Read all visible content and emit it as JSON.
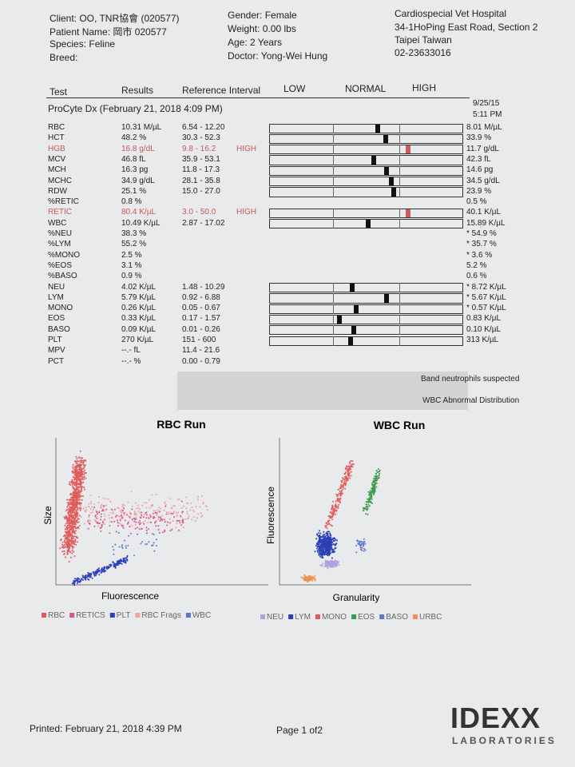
{
  "header": {
    "client": "Client: OO, TNR協會 (020577)",
    "patient": "Patient Name: 岡市 020577",
    "species": "Species: Feline",
    "breed": "Breed:",
    "gender": "Gender: Female",
    "weight": "Weight: 0.00 lbs",
    "age": "Age: 2 Years",
    "doctor": "Doctor: Yong-Wei Hung",
    "hospital": [
      "Cardiospecial Vet Hospital",
      "34-1HoPing East Road, Section 2",
      "Taipei Taiwan",
      "02-23633016"
    ]
  },
  "table": {
    "columns": [
      "Test",
      "Results",
      "Reference Interval",
      "LOW",
      "NORMAL",
      "HIGH"
    ],
    "section": "ProCyte Dx (February 21, 2018 4:09 PM)",
    "prior_date": "9/25/15",
    "prior_time": "5:11 PM",
    "rows": [
      {
        "test": "RBC",
        "result": "10.31 M/µL",
        "range": "6.54 - 12.20",
        "prior": "8.01 M/µL"
      },
      {
        "test": "HCT",
        "result": "48.2 %",
        "range": "30.3 - 52.3",
        "prior": "33.9 %"
      },
      {
        "test": "HGB",
        "result": "16.8 g/dL",
        "range": "9.8 - 16.2",
        "flag": "HIGH",
        "prior": "11.7 g/dL"
      },
      {
        "test": "MCV",
        "result": "46.8 fL",
        "range": "35.9 - 53.1",
        "prior": "42.3 fL"
      },
      {
        "test": "MCH",
        "result": "16.3 pg",
        "range": "11.8 - 17.3",
        "prior": "14.6 pg"
      },
      {
        "test": "MCHC",
        "result": "34.9 g/dL",
        "range": "28.1 - 35.8",
        "prior": "34.5 g/dL"
      },
      {
        "test": "RDW",
        "result": "25.1 %",
        "range": "15.0 - 27.0",
        "prior": "23.9 %"
      },
      {
        "test": "%RETIC",
        "result": "0.8 %",
        "prior": "0.5 %"
      },
      {
        "test": "RETIC",
        "result": "80.4 K/µL",
        "range": "3.0 - 50.0",
        "flag": "HIGH",
        "prior": "40.1 K/µL"
      },
      {
        "test": "WBC",
        "result": "10.49 K/µL",
        "range": "2.87 - 17.02",
        "prior": "15.89 K/µL"
      },
      {
        "test": "%NEU",
        "result": "38.3 %",
        "prior": "* 54.9 %"
      },
      {
        "test": "%LYM",
        "result": "55.2 %",
        "prior": "* 35.7 %"
      },
      {
        "test": "%MONO",
        "result": "2.5 %",
        "prior": "* 3.6 %"
      },
      {
        "test": "%EOS",
        "result": "3.1 %",
        "prior": "5.2 %"
      },
      {
        "test": "%BASO",
        "result": "0.9 %",
        "prior": "0.6 %"
      },
      {
        "test": "NEU",
        "result": "4.02 K/µL",
        "range": "1.48 - 10.29",
        "prior": "* 8.72 K/µL"
      },
      {
        "test": "LYM",
        "result": "5.79 K/µL",
        "range": "0.92 - 6.88",
        "prior": "* 5.67 K/µL"
      },
      {
        "test": "MONO",
        "result": "0.26 K/µL",
        "range": "0.05 - 0.67",
        "prior": "* 0.57 K/µL"
      },
      {
        "test": "EOS",
        "result": "0.33 K/µL",
        "range": "0.17 - 1.57",
        "prior": "0.83 K/µL"
      },
      {
        "test": "BASO",
        "result": "0.09 K/µL",
        "range": "0.01 - 0.26",
        "prior": "0.10 K/µL"
      },
      {
        "test": "PLT",
        "result": "270 K/µL",
        "range": "151 - 600",
        "prior": "313 K/µL"
      },
      {
        "test": "MPV",
        "result": "--.- fL",
        "range": "11.4 - 21.6"
      },
      {
        "test": "PCT",
        "result": "--.- %",
        "range": "0.00 - 0.79"
      }
    ]
  },
  "notes": [
    "Band neutrophils suspected",
    "WBC Abnormal Distribution"
  ],
  "rbc_run": {
    "title": "RBC Run",
    "x_label": "Fluorescence",
    "y_label": "Size",
    "legend": [
      {
        "name": "RBC",
        "color": "#e05a5a"
      },
      {
        "name": "RETICS",
        "color": "#d9538f"
      },
      {
        "name": "PLT",
        "color": "#2b3fb8"
      },
      {
        "name": "RBC Frags",
        "color": "#f0a0a0"
      },
      {
        "name": "WBC",
        "color": "#5a78d0"
      }
    ]
  },
  "wbc_run": {
    "title": "WBC Run",
    "x_label": "Granularity",
    "y_label": "Fluorescence",
    "legend": [
      {
        "name": "NEU",
        "color": "#b0a0e0"
      },
      {
        "name": "LYM",
        "color": "#2b3fb8"
      },
      {
        "name": "MONO",
        "color": "#e05a5a"
      },
      {
        "name": "EOS",
        "color": "#3a9a4a"
      },
      {
        "name": "BASO",
        "color": "#5a78d0"
      },
      {
        "name": "URBC",
        "color": "#f09050"
      }
    ]
  },
  "footer": {
    "printed": "Printed: February 21, 2018 4:39 PM",
    "page": "Page 1 of2",
    "logo": "IDEXX",
    "logo_sub": "LABORATORIES"
  }
}
